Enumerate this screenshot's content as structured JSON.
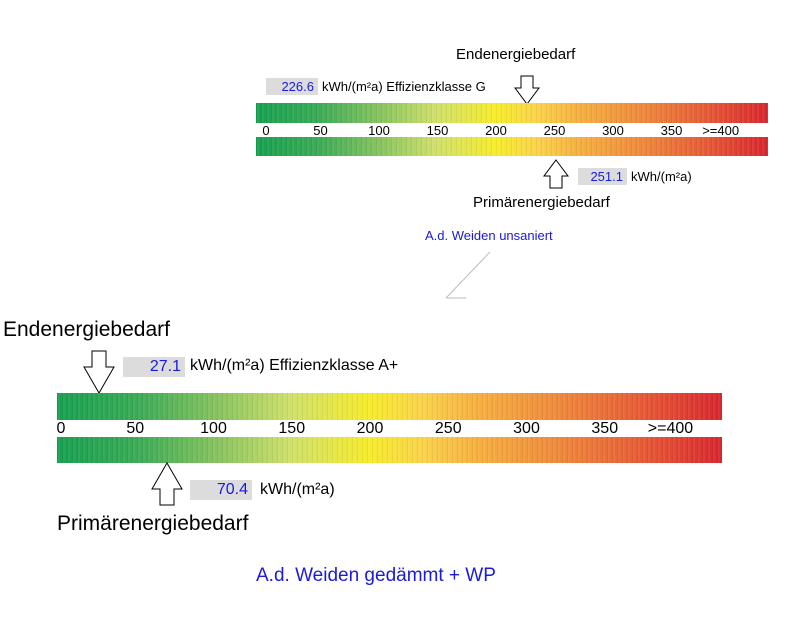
{
  "chart_data": [
    {
      "type": "scale",
      "title": "A.d. Weiden unsaniert",
      "axis_ticks": [
        "0",
        "50",
        "100",
        "150",
        "200",
        "250",
        "300",
        "350",
        ">=400"
      ],
      "xlim": [
        0,
        400
      ],
      "end_energy": {
        "label": "Endenergiebedarf",
        "value": 226.6,
        "value_text": "226.6",
        "unit_text": "kWh/(m²a) Effizienzklasse G"
      },
      "primary_energy": {
        "label": "Primärenergiebedarf",
        "value": 251.1,
        "value_text": "251.1",
        "unit_text": "kWh/(m²a)"
      }
    },
    {
      "type": "scale",
      "title": "A.d. Weiden gedämmt + WP",
      "axis_ticks": [
        "0",
        "50",
        "100",
        "150",
        "200",
        "250",
        "300",
        "350",
        ">=400"
      ],
      "xlim": [
        0,
        400
      ],
      "end_energy": {
        "label": "Endenergiebedarf",
        "value": 27.1,
        "value_text": "27.1",
        "unit_text": "kWh/(m²a) Effizienzklasse A+"
      },
      "primary_energy": {
        "label": "Primärenergiebedarf",
        "value": 70.4,
        "value_text": "70.4",
        "unit_text": "kWh/(m²a)"
      }
    }
  ],
  "colors": {
    "title": "#1a1ae0",
    "low": "#17a050",
    "mid": "#f7ec2a",
    "high": "#d8262e"
  }
}
